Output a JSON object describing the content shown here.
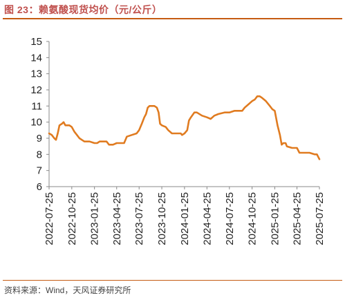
{
  "figure": {
    "title": "图 23：赖氨酸现货均价（元/公斤）",
    "source": "资料来源：Wind，天风证券研究所"
  },
  "colors": {
    "title": "#c0504d",
    "rule": "#c55a11",
    "line": "#e07b20",
    "axis": "#888888"
  },
  "chart_data": {
    "type": "line",
    "title": "",
    "xlabel": "",
    "ylabel": "",
    "ylim": [
      6,
      15
    ],
    "y_ticks": [
      "6",
      "7",
      "8",
      "9",
      "10",
      "11",
      "12",
      "13",
      "14",
      "15"
    ],
    "x_ticks": [
      "2022-07-25",
      "2022-10-25",
      "2023-01-25",
      "2023-04-25",
      "2023-07-25",
      "2023-10-25",
      "2024-01-25",
      "2024-04-25",
      "2024-07-25",
      "2024-10-25",
      "2025-01-25",
      "2025-04-25",
      "2025-07-25"
    ],
    "grid": false,
    "legend": "none",
    "series": [
      {
        "name": "",
        "points": [
          [
            "2022-07-25",
            9.3
          ],
          [
            "2022-08-05",
            9.2
          ],
          [
            "2022-08-15",
            9.0
          ],
          [
            "2022-08-22",
            8.9
          ],
          [
            "2022-08-29",
            9.3
          ],
          [
            "2022-09-05",
            9.8
          ],
          [
            "2022-09-15",
            9.9
          ],
          [
            "2022-09-22",
            10.0
          ],
          [
            "2022-09-29",
            9.8
          ],
          [
            "2022-10-15",
            9.8
          ],
          [
            "2022-10-25",
            9.7
          ],
          [
            "2022-11-05",
            9.4
          ],
          [
            "2022-11-15",
            9.2
          ],
          [
            "2022-11-25",
            9.0
          ],
          [
            "2022-12-05",
            8.9
          ],
          [
            "2022-12-15",
            8.8
          ],
          [
            "2023-01-05",
            8.8
          ],
          [
            "2023-01-25",
            8.7
          ],
          [
            "2023-02-05",
            8.7
          ],
          [
            "2023-02-15",
            8.8
          ],
          [
            "2023-03-15",
            8.8
          ],
          [
            "2023-03-25",
            8.6
          ],
          [
            "2023-04-10",
            8.6
          ],
          [
            "2023-04-25",
            8.7
          ],
          [
            "2023-05-25",
            8.7
          ],
          [
            "2023-06-05",
            9.1
          ],
          [
            "2023-06-25",
            9.2
          ],
          [
            "2023-07-15",
            9.3
          ],
          [
            "2023-07-25",
            9.5
          ],
          [
            "2023-08-05",
            9.9
          ],
          [
            "2023-08-15",
            10.3
          ],
          [
            "2023-08-22",
            10.5
          ],
          [
            "2023-08-29",
            10.9
          ],
          [
            "2023-09-05",
            11.0
          ],
          [
            "2023-09-25",
            11.0
          ],
          [
            "2023-10-05",
            10.9
          ],
          [
            "2023-10-12",
            10.6
          ],
          [
            "2023-10-18",
            9.9
          ],
          [
            "2023-10-25",
            9.8
          ],
          [
            "2023-11-10",
            9.7
          ],
          [
            "2023-11-20",
            9.5
          ],
          [
            "2023-12-05",
            9.3
          ],
          [
            "2023-12-20",
            9.3
          ],
          [
            "2024-01-10",
            9.3
          ],
          [
            "2024-01-15",
            9.2
          ],
          [
            "2024-01-25",
            9.3
          ],
          [
            "2024-02-05",
            9.5
          ],
          [
            "2024-02-12",
            10.1
          ],
          [
            "2024-02-20",
            10.3
          ],
          [
            "2024-03-05",
            10.6
          ],
          [
            "2024-03-15",
            10.6
          ],
          [
            "2024-04-05",
            10.4
          ],
          [
            "2024-04-25",
            10.3
          ],
          [
            "2024-05-10",
            10.2
          ],
          [
            "2024-05-25",
            10.4
          ],
          [
            "2024-06-10",
            10.5
          ],
          [
            "2024-07-05",
            10.6
          ],
          [
            "2024-07-25",
            10.6
          ],
          [
            "2024-08-15",
            10.7
          ],
          [
            "2024-09-15",
            10.7
          ],
          [
            "2024-09-25",
            10.9
          ],
          [
            "2024-10-10",
            11.1
          ],
          [
            "2024-10-25",
            11.3
          ],
          [
            "2024-11-05",
            11.4
          ],
          [
            "2024-11-15",
            11.6
          ],
          [
            "2024-11-25",
            11.6
          ],
          [
            "2024-12-05",
            11.5
          ],
          [
            "2024-12-20",
            11.3
          ],
          [
            "2025-01-05",
            11.0
          ],
          [
            "2025-01-15",
            10.8
          ],
          [
            "2025-01-25",
            10.7
          ],
          [
            "2025-02-05",
            9.8
          ],
          [
            "2025-02-15",
            9.2
          ],
          [
            "2025-02-22",
            8.6
          ],
          [
            "2025-03-01",
            8.7
          ],
          [
            "2025-03-10",
            8.7
          ],
          [
            "2025-03-15",
            8.5
          ],
          [
            "2025-04-05",
            8.4
          ],
          [
            "2025-04-25",
            8.4
          ],
          [
            "2025-05-05",
            8.1
          ],
          [
            "2025-05-25",
            8.1
          ],
          [
            "2025-06-15",
            8.1
          ],
          [
            "2025-07-05",
            8.0
          ],
          [
            "2025-07-15",
            8.0
          ],
          [
            "2025-07-25",
            7.7
          ]
        ]
      }
    ]
  }
}
